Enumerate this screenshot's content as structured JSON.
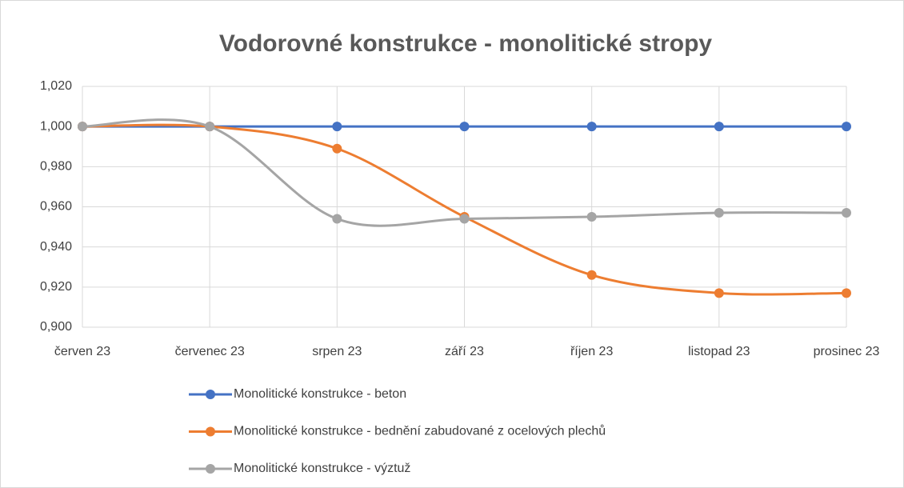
{
  "chart_data": {
    "type": "line",
    "title": "Vodorovné konstrukce - monolitické stropy",
    "categories": [
      "červen 23",
      "červenec 23",
      "srpen 23",
      "září 23",
      "říjen 23",
      "listopad 23",
      "prosinec 23"
    ],
    "series": [
      {
        "name": "Monolitické konstrukce - beton",
        "color": "#4472c4",
        "values": [
          1.0,
          1.0,
          1.0,
          1.0,
          1.0,
          1.0,
          1.0
        ]
      },
      {
        "name": "Monolitické konstrukce - bednění zabudované z ocelových plechů",
        "color": "#ed7d31",
        "values": [
          1.0,
          1.0,
          0.989,
          0.955,
          0.926,
          0.917,
          0.917
        ]
      },
      {
        "name": "Monolitické konstrukce - výztuž",
        "color": "#a5a5a5",
        "values": [
          1.0,
          1.0,
          0.954,
          0.954,
          0.955,
          0.957,
          0.957
        ]
      }
    ],
    "ylim": [
      0.9,
      1.02
    ],
    "yticks": [
      {
        "value": 0.9,
        "label": "0,900"
      },
      {
        "value": 0.92,
        "label": "0,920"
      },
      {
        "value": 0.94,
        "label": "0,940"
      },
      {
        "value": 0.96,
        "label": "0,960"
      },
      {
        "value": 0.98,
        "label": "0,980"
      },
      {
        "value": 1.0,
        "label": "1,000"
      },
      {
        "value": 1.02,
        "label": "1,020"
      }
    ],
    "grid": true,
    "smooth": true,
    "legend": "bottom"
  }
}
